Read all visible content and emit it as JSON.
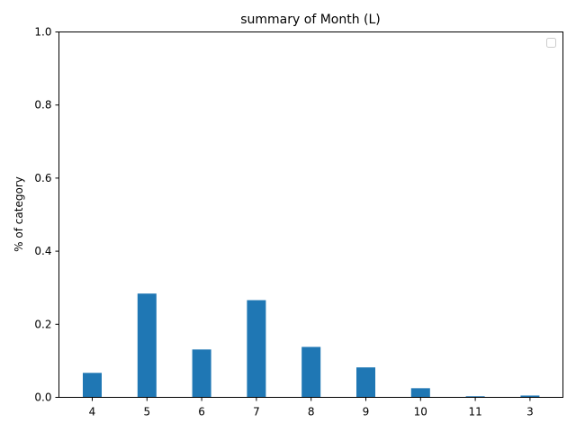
{
  "chart_data": {
    "type": "bar",
    "title": "summary of Month (L)",
    "xlabel": "",
    "ylabel": "% of category",
    "categories": [
      "4",
      "5",
      "6",
      "7",
      "8",
      "9",
      "10",
      "11",
      "3"
    ],
    "values": [
      0.067,
      0.284,
      0.131,
      0.266,
      0.138,
      0.082,
      0.025,
      0.003,
      0.005
    ],
    "ylim": [
      0,
      1.0
    ],
    "yticks": [
      "0.0",
      "0.2",
      "0.4",
      "0.6",
      "0.8",
      "1.0"
    ],
    "grid": false,
    "legend": {
      "placement": "top-right",
      "entries": []
    },
    "colors": {
      "bar": "#1f77b4",
      "axis": "#000000",
      "background": "#ffffff"
    }
  }
}
